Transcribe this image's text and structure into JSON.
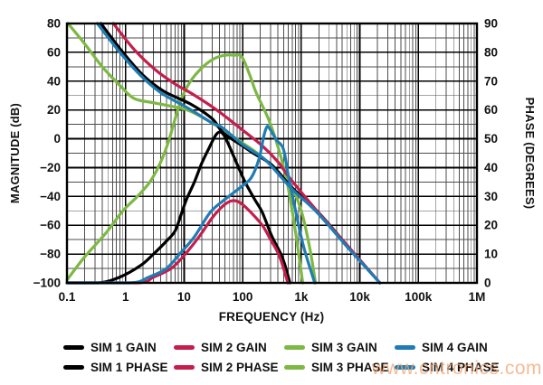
{
  "watermark": {
    "text": "www.cntronics.com"
  },
  "legend": {
    "items": [
      {
        "label": "SIM 1 GAIN",
        "color": "#000000"
      },
      {
        "label": "SIM 2 GAIN",
        "color": "#C41E4D"
      },
      {
        "label": "SIM 3 GAIN",
        "color": "#7DB843"
      },
      {
        "label": "SIM 4 GAIN",
        "color": "#1F7CB4"
      },
      {
        "label": "SIM 1 PHASE",
        "color": "#000000"
      },
      {
        "label": "SIM 2 PHASE",
        "color": "#C41E4D"
      },
      {
        "label": "SIM 3 PHASE",
        "color": "#7DB843"
      },
      {
        "label": "SIM 4 PHASE",
        "color": "#1F7CB4"
      }
    ]
  },
  "chart_data": {
    "type": "line",
    "title": "",
    "xlabel": "FREQUENCY (Hz)",
    "ylabel_left": "MAGNITUDE (dB)",
    "ylabel_right": "PHASE (DEGREES)",
    "x_scale": "log",
    "x_range": [
      0.1,
      1000000
    ],
    "y_left_range": [
      -100,
      80
    ],
    "y_right_range": [
      0,
      90
    ],
    "grid": {
      "minor_x": "log-decades 2-9",
      "y_minor_step": 10,
      "y_major_step": 20
    },
    "x_ticks": [
      {
        "f": 0.1,
        "label": "0.1"
      },
      {
        "f": 1,
        "label": "1"
      },
      {
        "f": 10,
        "label": "10"
      },
      {
        "f": 100,
        "label": "100"
      },
      {
        "f": 1000,
        "label": "1k"
      },
      {
        "f": 10000,
        "label": "10k"
      },
      {
        "f": 100000,
        "label": "100k"
      },
      {
        "f": 1000000,
        "label": "1M"
      }
    ],
    "y_left_ticks": [
      {
        "v": 80,
        "label": "80"
      },
      {
        "v": 60,
        "label": "60"
      },
      {
        "v": 40,
        "label": "40"
      },
      {
        "v": 20,
        "label": "20"
      },
      {
        "v": 0,
        "label": "0"
      },
      {
        "v": -20,
        "label": "−20"
      },
      {
        "v": -40,
        "label": "−40"
      },
      {
        "v": -60,
        "label": "−60"
      },
      {
        "v": -80,
        "label": "−80"
      },
      {
        "v": -100,
        "label": "−100"
      }
    ],
    "y_right_ticks": [
      {
        "v": 90,
        "label": "90"
      },
      {
        "v": 80,
        "label": "80"
      },
      {
        "v": 70,
        "label": "70"
      },
      {
        "v": 60,
        "label": "60"
      },
      {
        "v": 50,
        "label": "50"
      },
      {
        "v": 40,
        "label": "40"
      },
      {
        "v": 30,
        "label": "30"
      },
      {
        "v": 20,
        "label": "20"
      },
      {
        "v": 10,
        "label": "10"
      },
      {
        "v": 0,
        "label": "0"
      }
    ],
    "series": [
      {
        "name": "SIM 3 GAIN",
        "color": "#7DB843",
        "axis": "mag",
        "points": [
          [
            0.1,
            -98
          ],
          [
            0.2,
            -82
          ],
          [
            0.45,
            -66
          ],
          [
            0.9,
            -50
          ],
          [
            1.6,
            -40
          ],
          [
            2.6,
            -30
          ],
          [
            3.6,
            -20
          ],
          [
            4.6,
            -10
          ],
          [
            5.6,
            0
          ],
          [
            6.6,
            10
          ],
          [
            7.8,
            20
          ],
          [
            9.5,
            30
          ],
          [
            12,
            38
          ],
          [
            16,
            45
          ],
          [
            24,
            52
          ],
          [
            34,
            56
          ],
          [
            50,
            58
          ],
          [
            70,
            58
          ],
          [
            96,
            57
          ],
          [
            130,
            45
          ],
          [
            170,
            32
          ],
          [
            280,
            13
          ],
          [
            410,
            -7
          ],
          [
            560,
            -28
          ],
          [
            700,
            -50
          ],
          [
            850,
            -72
          ],
          [
            1060,
            -100
          ]
        ]
      },
      {
        "name": "SIM 3 PHASE",
        "color": "#7DB843",
        "axis": "phase",
        "points": [
          [
            0.104,
            90
          ],
          [
            0.2,
            83
          ],
          [
            0.4,
            75
          ],
          [
            0.8,
            68.5
          ],
          [
            1.4,
            64
          ],
          [
            3,
            62.5
          ],
          [
            7,
            61
          ],
          [
            13,
            59.5
          ],
          [
            36,
            54.5
          ],
          [
            100,
            48.5
          ],
          [
            218,
            43.5
          ],
          [
            630,
            34
          ],
          [
            1000,
            25
          ],
          [
            1400,
            12
          ],
          [
            1750,
            0
          ]
        ]
      },
      {
        "name": "SIM 1 GAIN",
        "color": "#000000",
        "axis": "mag",
        "points": [
          [
            0.1,
            -100
          ],
          [
            0.35,
            -100
          ],
          [
            0.8,
            -96
          ],
          [
            1.8,
            -88
          ],
          [
            3,
            -80
          ],
          [
            5,
            -71
          ],
          [
            7,
            -64
          ],
          [
            9,
            -52
          ],
          [
            11,
            -42
          ],
          [
            15,
            -30
          ],
          [
            20,
            -17
          ],
          [
            27,
            -6
          ],
          [
            34,
            2
          ],
          [
            40,
            4.7
          ],
          [
            47,
            3
          ],
          [
            56,
            -3
          ],
          [
            70,
            -12
          ],
          [
            107,
            -29
          ],
          [
            160,
            -42
          ],
          [
            216,
            -51
          ],
          [
            310,
            -67
          ],
          [
            450,
            -80
          ],
          [
            530,
            -88
          ],
          [
            640,
            -100
          ]
        ]
      },
      {
        "name": "SIM 1 PHASE",
        "color": "#000000",
        "axis": "phase",
        "points": [
          [
            0.38,
            90
          ],
          [
            0.9,
            80
          ],
          [
            2,
            72
          ],
          [
            4.5,
            66.5
          ],
          [
            13,
            62
          ],
          [
            30,
            57
          ],
          [
            47,
            52
          ],
          [
            100,
            47.5
          ],
          [
            152,
            45
          ],
          [
            310,
            41
          ],
          [
            700,
            33
          ],
          [
            1850,
            25
          ],
          [
            6400,
            12.5
          ],
          [
            22000,
            0
          ]
        ]
      },
      {
        "name": "SIM 2 GAIN",
        "color": "#C41E4D",
        "axis": "mag",
        "points": [
          [
            0.1,
            -100
          ],
          [
            1.6,
            -100
          ],
          [
            3,
            -96
          ],
          [
            6,
            -90
          ],
          [
            10,
            -81
          ],
          [
            18,
            -68
          ],
          [
            30,
            -55
          ],
          [
            45,
            -47
          ],
          [
            60,
            -43.5
          ],
          [
            75,
            -43
          ],
          [
            95,
            -45
          ],
          [
            130,
            -50
          ],
          [
            216,
            -60
          ],
          [
            300,
            -70
          ],
          [
            410,
            -80
          ],
          [
            500,
            -90
          ],
          [
            590,
            -100
          ]
        ]
      },
      {
        "name": "SIM 2 PHASE",
        "color": "#C41E4D",
        "axis": "phase",
        "points": [
          [
            0.62,
            90
          ],
          [
            1.4,
            81
          ],
          [
            3.2,
            74
          ],
          [
            7,
            69
          ],
          [
            14,
            65.5
          ],
          [
            36,
            60
          ],
          [
            100,
            53
          ],
          [
            218,
            47.5
          ],
          [
            400,
            42
          ],
          [
            630,
            36.5
          ],
          [
            1850,
            25
          ],
          [
            6400,
            12.5
          ],
          [
            22000,
            0
          ]
        ]
      },
      {
        "name": "SIM 4 GAIN",
        "color": "#1F7CB4",
        "axis": "mag",
        "points": [
          [
            0.1,
            -100
          ],
          [
            1.2,
            -100
          ],
          [
            2.5,
            -96
          ],
          [
            5,
            -90
          ],
          [
            8.8,
            -79
          ],
          [
            15,
            -68
          ],
          [
            28,
            -51
          ],
          [
            50,
            -42
          ],
          [
            90,
            -34
          ],
          [
            140,
            -27
          ],
          [
            190,
            -14
          ],
          [
            230,
            2
          ],
          [
            262,
            8.5
          ],
          [
            300,
            6
          ],
          [
            380,
            -1
          ],
          [
            495,
            -7
          ],
          [
            600,
            -25
          ],
          [
            800,
            -50
          ],
          [
            1100,
            -75
          ],
          [
            1700,
            -100
          ]
        ]
      },
      {
        "name": "SIM 4 PHASE",
        "color": "#1F7CB4",
        "axis": "phase",
        "points": [
          [
            0.33,
            90
          ],
          [
            0.8,
            80
          ],
          [
            1.8,
            72
          ],
          [
            4,
            66
          ],
          [
            12,
            60.5
          ],
          [
            30,
            55.5
          ],
          [
            44,
            54
          ],
          [
            100,
            48
          ],
          [
            218,
            43.5
          ],
          [
            310,
            40.5
          ],
          [
            700,
            32.5
          ],
          [
            1850,
            24.5
          ],
          [
            6400,
            12
          ],
          [
            22000,
            0
          ]
        ]
      }
    ]
  }
}
